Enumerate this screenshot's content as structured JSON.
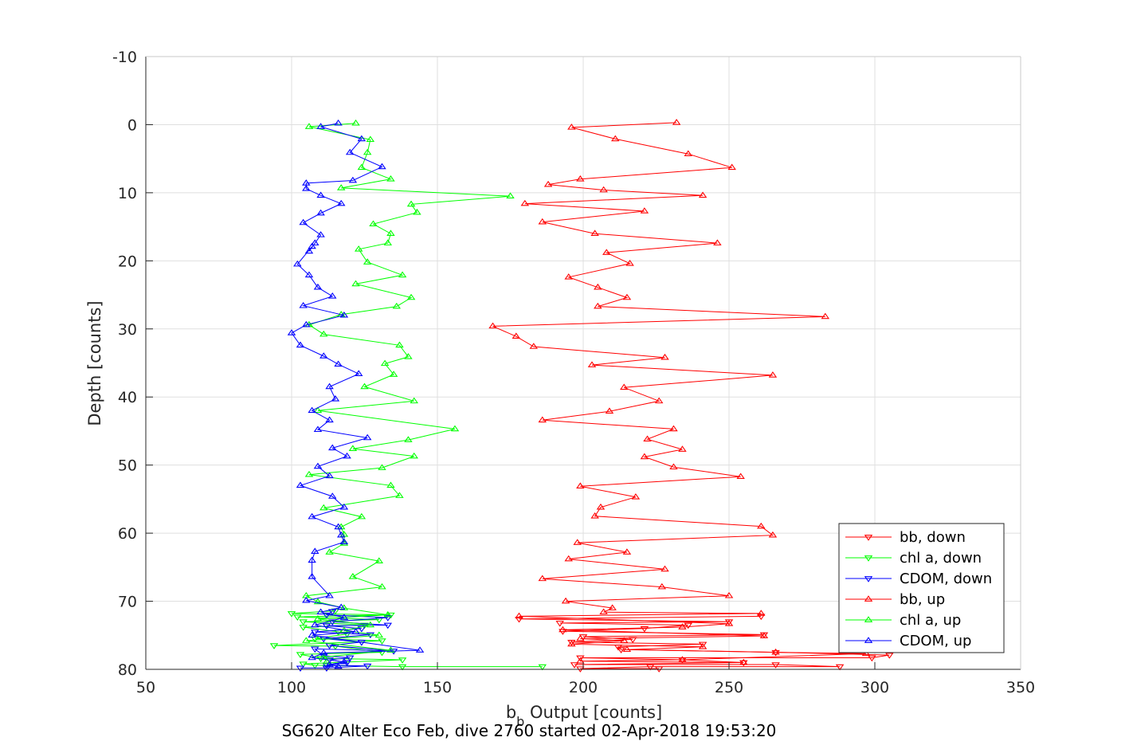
{
  "chart_data": {
    "type": "line",
    "xlabel_main": "b",
    "xlabel_sub": "b",
    "xlabel_rest": " Output [counts]",
    "ylabel": "Depth [counts]",
    "caption": "SG620 Alter Eco Feb, dive 2760 started 02-Apr-2018 19:53:20",
    "xlim": [
      50,
      350
    ],
    "ylim": [
      -10,
      80
    ],
    "y_reversed": true,
    "grid": true,
    "legend_position": "bottom-right",
    "xticks": [
      "50",
      "100",
      "150",
      "200",
      "250",
      "300",
      "350"
    ],
    "yticks": [
      "-10",
      "0",
      "10",
      "20",
      "30",
      "40",
      "50",
      "60",
      "70",
      "80"
    ],
    "series": [
      {
        "name": "bb, down",
        "color": "#ff0000",
        "marker": "triangle-down",
        "points": [
          [
            226,
            79.9
          ],
          [
            199,
            79.9
          ],
          [
            223,
            79.6
          ],
          [
            288,
            79.6
          ],
          [
            266,
            79.3
          ],
          [
            197,
            79.3
          ],
          [
            255,
            79
          ],
          [
            234,
            78.6
          ],
          [
            199,
            78.3
          ],
          [
            299,
            78.3
          ],
          [
            305,
            77.9
          ],
          [
            266,
            77.5
          ],
          [
            213,
            77.1
          ],
          [
            212,
            76.7
          ],
          [
            241,
            76.3
          ],
          [
            196,
            76.0
          ],
          [
            217,
            75.6
          ],
          [
            200,
            75.2
          ],
          [
            262,
            74.9
          ],
          [
            193,
            74.4
          ],
          [
            221,
            74.0
          ],
          [
            236,
            73.5
          ],
          [
            192,
            73.2
          ],
          [
            250,
            73.0
          ],
          [
            178,
            72.6
          ],
          [
            261,
            72.2
          ]
        ]
      },
      {
        "name": "chl a, down",
        "color": "#00ff00",
        "marker": "triangle-down",
        "points": [
          [
            186,
            79.6
          ],
          [
            138,
            79.6
          ],
          [
            108,
            79.4
          ],
          [
            104,
            79.2
          ],
          [
            138,
            78.6
          ],
          [
            110,
            78.4
          ],
          [
            103,
            77.8
          ],
          [
            131,
            77.5
          ],
          [
            115,
            76.6
          ],
          [
            94,
            76.5
          ],
          [
            131,
            75.8
          ],
          [
            108,
            75.5
          ],
          [
            119,
            74.8
          ],
          [
            116,
            74.5
          ],
          [
            104,
            73.8
          ],
          [
            125,
            73.5
          ],
          [
            104,
            73.0
          ],
          [
            130,
            72.7
          ],
          [
            102,
            72.3
          ],
          [
            134,
            72.0
          ],
          [
            100,
            71.8
          ],
          [
            115,
            71.4
          ]
        ]
      },
      {
        "name": "CDOM, down",
        "color": "#0000ff",
        "marker": "triangle-down",
        "points": [
          [
            103,
            79.8
          ],
          [
            112,
            79.8
          ],
          [
            126,
            79.5
          ],
          [
            112,
            79.4
          ],
          [
            119,
            79.0
          ],
          [
            113,
            78.6
          ],
          [
            120,
            78.3
          ],
          [
            111,
            78.0
          ],
          [
            108,
            77.0
          ],
          [
            135,
            77.3
          ],
          [
            113,
            76.5
          ],
          [
            124,
            76.0
          ],
          [
            111,
            75.5
          ],
          [
            127,
            74.9
          ],
          [
            108,
            74.5
          ],
          [
            124,
            74.0
          ],
          [
            112,
            73.6
          ],
          [
            133,
            73.5
          ],
          [
            114,
            73.0
          ],
          [
            133,
            72.4
          ],
          [
            112,
            72.0
          ],
          [
            114,
            71.5
          ]
        ]
      },
      {
        "name": "bb, up",
        "color": "#ff0000",
        "marker": "triangle-up",
        "points": [
          [
            232,
            -0.3
          ],
          [
            196,
            0.4
          ],
          [
            211,
            2.1
          ],
          [
            236,
            4.3
          ],
          [
            251,
            6.3
          ],
          [
            199,
            8.0
          ],
          [
            188,
            8.8
          ],
          [
            207,
            9.6
          ],
          [
            241,
            10.4
          ],
          [
            180,
            11.6
          ],
          [
            221,
            12.7
          ],
          [
            186,
            14.3
          ],
          [
            204,
            16.0
          ],
          [
            246,
            17.4
          ],
          [
            208,
            18.8
          ],
          [
            216,
            20.4
          ],
          [
            195,
            22.4
          ],
          [
            205,
            23.9
          ],
          [
            215,
            25.4
          ],
          [
            205,
            26.7
          ],
          [
            283,
            28.2
          ],
          [
            169,
            29.6
          ],
          [
            177,
            31.1
          ],
          [
            183,
            32.6
          ],
          [
            228,
            34.2
          ],
          [
            203,
            35.3
          ],
          [
            265,
            36.8
          ],
          [
            214,
            38.6
          ],
          [
            226,
            40.6
          ],
          [
            209,
            42.1
          ],
          [
            186,
            43.4
          ],
          [
            231,
            44.7
          ],
          [
            222,
            46.2
          ],
          [
            234,
            47.7
          ],
          [
            221,
            48.8
          ],
          [
            231,
            50.3
          ],
          [
            254,
            51.7
          ],
          [
            199,
            53.1
          ],
          [
            218,
            54.7
          ],
          [
            206,
            56.2
          ],
          [
            204,
            57.5
          ],
          [
            261,
            59.0
          ],
          [
            265,
            60.3
          ],
          [
            198,
            61.4
          ],
          [
            215,
            62.8
          ],
          [
            195,
            63.8
          ],
          [
            228,
            65.3
          ],
          [
            186,
            66.7
          ],
          [
            227,
            67.9
          ],
          [
            250,
            69.2
          ],
          [
            194,
            70.0
          ],
          [
            210,
            71.0
          ],
          [
            207,
            71.6
          ],
          [
            261,
            71.8
          ],
          [
            178,
            72.2
          ],
          [
            250,
            73.3
          ],
          [
            234,
            73.8
          ],
          [
            193,
            74.2
          ],
          [
            262,
            75.1
          ],
          [
            199,
            75.5
          ],
          [
            214,
            75.8
          ],
          [
            196,
            76.3
          ],
          [
            241,
            76.7
          ],
          [
            215,
            77.1
          ],
          [
            266,
            77.5
          ],
          [
            297,
            77.7
          ],
          [
            234,
            78.6
          ],
          [
            199,
            78.8
          ],
          [
            255,
            79.0
          ]
        ]
      },
      {
        "name": "chl a, up",
        "color": "#00ff00",
        "marker": "triangle-up",
        "points": [
          [
            122,
            -0.2
          ],
          [
            106,
            0.3
          ],
          [
            127,
            2.2
          ],
          [
            126,
            4.1
          ],
          [
            124,
            6.3
          ],
          [
            134,
            8.0
          ],
          [
            117,
            9.3
          ],
          [
            175,
            10.5
          ],
          [
            141,
            11.7
          ],
          [
            143,
            12.9
          ],
          [
            128,
            14.6
          ],
          [
            134,
            16.0
          ],
          [
            133,
            17.4
          ],
          [
            123,
            18.3
          ],
          [
            126,
            20.2
          ],
          [
            138,
            22.1
          ],
          [
            122,
            23.4
          ],
          [
            141,
            25.4
          ],
          [
            136,
            26.7
          ],
          [
            117,
            27.9
          ],
          [
            106,
            29.4
          ],
          [
            111,
            30.8
          ],
          [
            137,
            32.4
          ],
          [
            140,
            34.1
          ],
          [
            132,
            35.1
          ],
          [
            135,
            36.7
          ],
          [
            125,
            38.5
          ],
          [
            142,
            40.6
          ],
          [
            109,
            42.0
          ],
          [
            156,
            44.7
          ],
          [
            140,
            46.3
          ],
          [
            121,
            47.6
          ],
          [
            142,
            48.7
          ],
          [
            131,
            50.4
          ],
          [
            106,
            51.4
          ],
          [
            134,
            53.0
          ],
          [
            137,
            54.5
          ],
          [
            111,
            56.3
          ],
          [
            124,
            57.6
          ],
          [
            117,
            59.1
          ],
          [
            118,
            60.2
          ],
          [
            118,
            61.5
          ],
          [
            113,
            62.8
          ],
          [
            130,
            64.1
          ],
          [
            121,
            66.4
          ],
          [
            131,
            67.9
          ],
          [
            105,
            69.2
          ],
          [
            109,
            70.1
          ],
          [
            118,
            71.0
          ],
          [
            133,
            72.0
          ],
          [
            109,
            72.6
          ],
          [
            127,
            73.5
          ],
          [
            118,
            74.3
          ],
          [
            130,
            75.0
          ],
          [
            105,
            75.8
          ],
          [
            134,
            77.2
          ],
          [
            111,
            78.2
          ],
          [
            112,
            78.9
          ]
        ]
      },
      {
        "name": "CDOM, up",
        "color": "#0000ff",
        "marker": "triangle-up",
        "points": [
          [
            116,
            -0.2
          ],
          [
            110,
            0.3
          ],
          [
            124,
            2.1
          ],
          [
            120,
            4.1
          ],
          [
            131,
            6.2
          ],
          [
            121,
            8.2
          ],
          [
            105,
            8.6
          ],
          [
            105,
            9.4
          ],
          [
            110,
            10.4
          ],
          [
            117,
            11.6
          ],
          [
            110,
            13.0
          ],
          [
            104,
            14.4
          ],
          [
            110,
            16.2
          ],
          [
            108,
            17.4
          ],
          [
            106,
            18.6
          ],
          [
            107,
            17.9
          ],
          [
            102,
            20.5
          ],
          [
            106,
            22.1
          ],
          [
            109,
            23.9
          ],
          [
            114,
            25.2
          ],
          [
            104,
            26.6
          ],
          [
            118,
            28.0
          ],
          [
            105,
            29.4
          ],
          [
            100,
            30.6
          ],
          [
            103,
            32.4
          ],
          [
            111,
            34.0
          ],
          [
            116,
            35.2
          ],
          [
            123,
            36.6
          ],
          [
            113,
            38.5
          ],
          [
            115,
            40.3
          ],
          [
            107,
            42.0
          ],
          [
            113,
            43.4
          ],
          [
            109,
            44.8
          ],
          [
            126,
            46.0
          ],
          [
            114,
            47.5
          ],
          [
            119,
            48.7
          ],
          [
            109,
            50.2
          ],
          [
            113,
            51.6
          ],
          [
            103,
            53.0
          ],
          [
            114,
            54.6
          ],
          [
            118,
            56.2
          ],
          [
            107,
            57.6
          ],
          [
            116,
            59.1
          ],
          [
            117,
            60.3
          ],
          [
            118,
            61.3
          ],
          [
            108,
            62.7
          ],
          [
            107,
            64.0
          ],
          [
            107,
            66.4
          ],
          [
            113,
            69.2
          ],
          [
            105,
            69.9
          ],
          [
            117,
            70.9
          ],
          [
            110,
            71.6
          ],
          [
            118,
            72.4
          ],
          [
            108,
            73.5
          ],
          [
            122,
            74.5
          ],
          [
            107,
            75.0
          ],
          [
            144,
            77.2
          ],
          [
            111,
            77.6
          ],
          [
            107,
            78.3
          ],
          [
            118,
            78.9
          ],
          [
            113,
            79.3
          ],
          [
            116,
            79.6
          ]
        ]
      }
    ]
  }
}
